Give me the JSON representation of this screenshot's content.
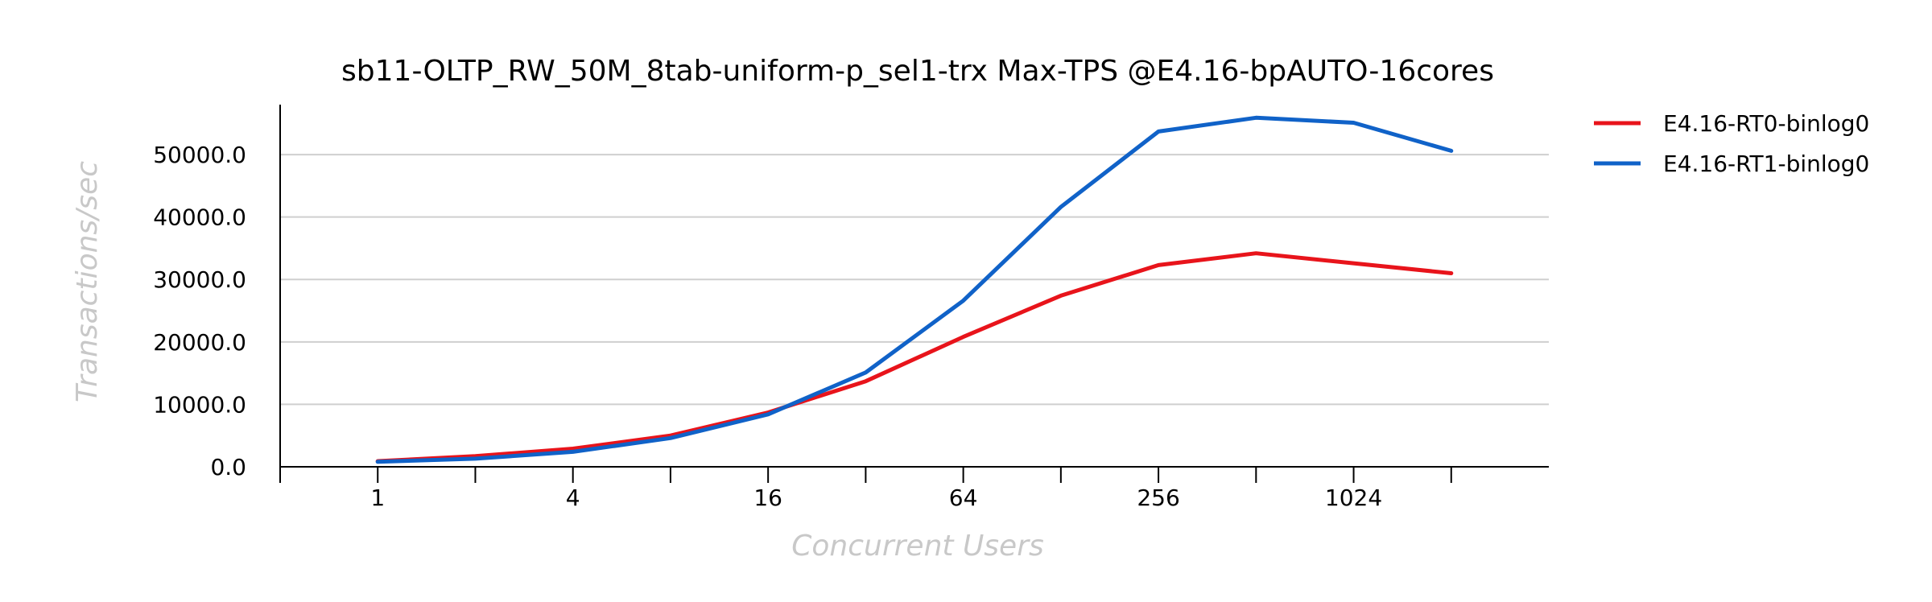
{
  "chart_data": {
    "type": "line",
    "title": "sb11-OLTP_RW_50M_8tab-uniform-p_sel1-trx Max-TPS @E4.16-bpAUTO-16cores",
    "xlabel": "Concurrent Users",
    "ylabel": "Transactions/sec",
    "x": [
      1,
      2,
      4,
      8,
      16,
      32,
      64,
      128,
      256,
      512,
      1024,
      2048
    ],
    "x_tick_labels": [
      "1",
      "4",
      "16",
      "64",
      "256",
      "1024"
    ],
    "x_tick_values": [
      1,
      4,
      16,
      64,
      256,
      1024
    ],
    "x_minor_ticks": [
      0.5,
      2,
      8,
      32,
      128,
      512,
      2048
    ],
    "x_scale": "log2",
    "xlim": [
      0.5,
      4096
    ],
    "ylim": [
      0,
      58000
    ],
    "y_ticks": [
      0,
      10000,
      20000,
      30000,
      40000,
      50000
    ],
    "y_tick_labels": [
      "0.0",
      "10000.0",
      "20000.0",
      "30000.0",
      "40000.0",
      "50000.0"
    ],
    "grid": "horizontal",
    "legend_position": "top-right",
    "series": [
      {
        "name": "E4.16-RT0-binlog0",
        "color": "#e8141b",
        "values": [
          900,
          1700,
          2900,
          5000,
          8700,
          13700,
          20800,
          27400,
          32300,
          34200,
          32600,
          31000
        ]
      },
      {
        "name": "E4.16-RT1-binlog0",
        "color": "#1062c8",
        "values": [
          800,
          1300,
          2400,
          4600,
          8400,
          15100,
          26600,
          41600,
          53700,
          55900,
          55100,
          50600
        ]
      }
    ]
  }
}
